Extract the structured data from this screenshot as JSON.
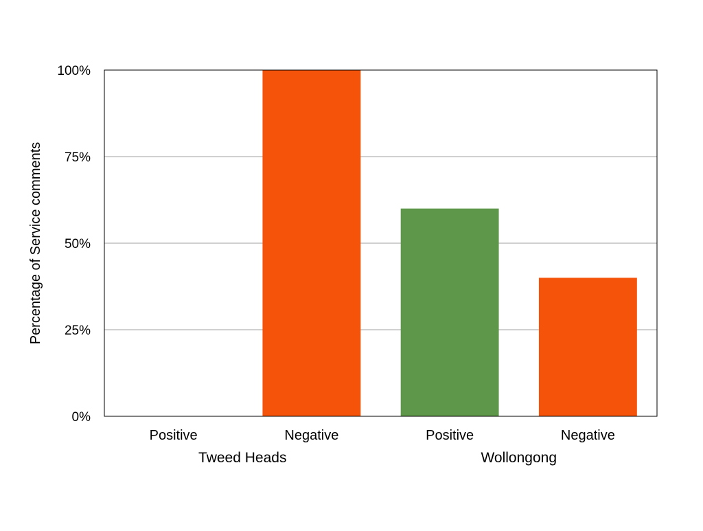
{
  "chart_data": {
    "type": "bar",
    "title": "",
    "ylabel": "Percentage of Service comments",
    "xlabel": "",
    "ylim": [
      0,
      100
    ],
    "yticks": [
      "0%",
      "25%",
      "50%",
      "75%",
      "100%"
    ],
    "ytick_values": [
      0,
      25,
      50,
      75,
      100
    ],
    "grid": true,
    "groups": [
      {
        "name": "Tweed Heads",
        "categories": [
          "Positive",
          "Negative"
        ],
        "values": [
          0,
          100
        ]
      },
      {
        "name": "Wollongong",
        "categories": [
          "Positive",
          "Negative"
        ],
        "values": [
          60,
          40
        ]
      }
    ],
    "colors": {
      "Positive": "#5f974a",
      "Negative": "#f5520a"
    },
    "legend": "none"
  }
}
